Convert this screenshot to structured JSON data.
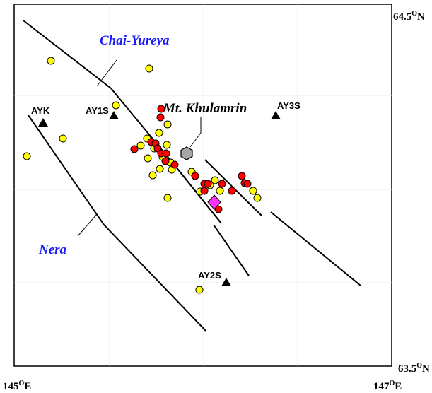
{
  "map": {
    "corners": {
      "top_right_lat": "64.5",
      "bottom_right_lat": "63.5",
      "bottom_left_lon": "145",
      "bottom_right_lon": "147",
      "degree_symbol": "O",
      "north": "N",
      "east": "E"
    },
    "faults": {
      "chai_yureya": "Chai-Yureya",
      "nera": "Nera"
    },
    "volcano": {
      "name": "Mt. Khulamrin"
    },
    "stations": [
      {
        "name": "AYK"
      },
      {
        "name": "AY1S"
      },
      {
        "name": "AY2S"
      },
      {
        "name": "AY3S"
      }
    ],
    "colors": {
      "fault_label": "#1a1aff",
      "event_yellow": "#ffff00",
      "event_red": "#ff0000",
      "highlight_event": "#ff33ff",
      "volcano_fill": "#a6a6a6",
      "station": "#000000"
    }
  }
}
